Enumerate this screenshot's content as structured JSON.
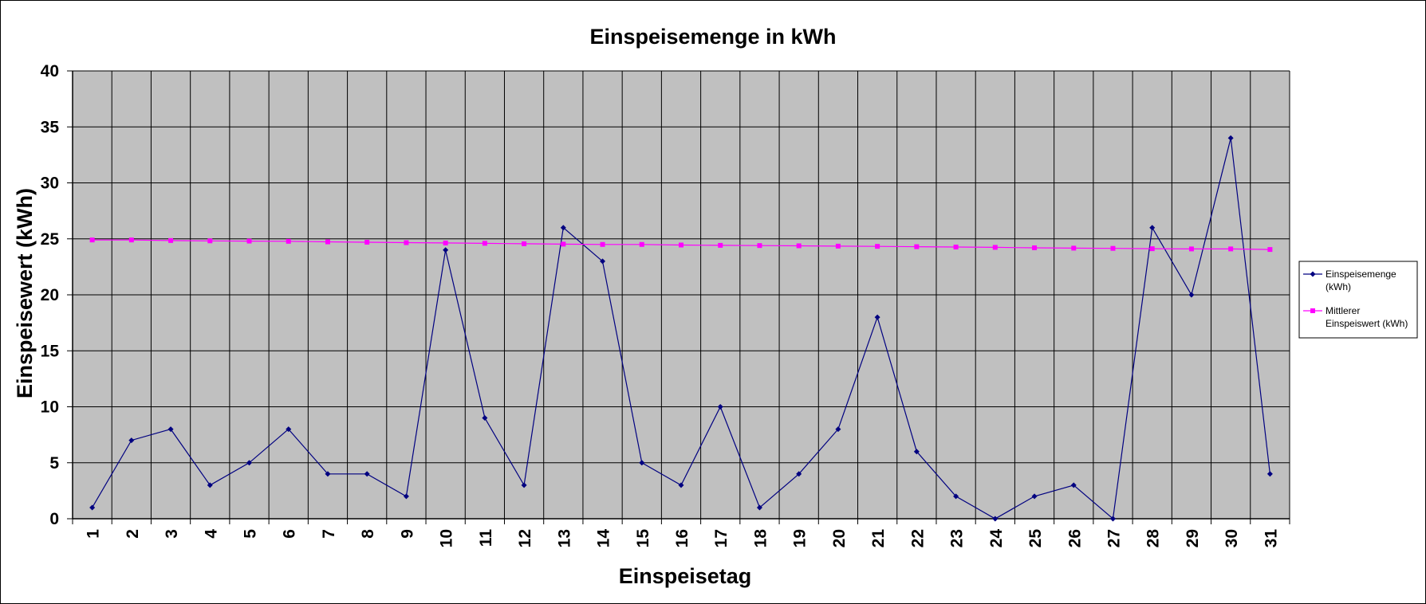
{
  "chart_data": {
    "type": "line",
    "title": "Einspeisemenge in kWh",
    "xlabel": "Einspeisetag",
    "ylabel": "Einspeisewert  (kWh)",
    "categories": [
      "1",
      "2",
      "3",
      "4",
      "5",
      "6",
      "7",
      "8",
      "9",
      "10",
      "11",
      "12",
      "13",
      "14",
      "15",
      "16",
      "17",
      "18",
      "19",
      "20",
      "21",
      "22",
      "23",
      "24",
      "25",
      "26",
      "27",
      "28",
      "29",
      "30",
      "31"
    ],
    "ylim": [
      0,
      40
    ],
    "yticks": [
      "0",
      "5",
      "10",
      "15",
      "20",
      "25",
      "30",
      "35",
      "40"
    ],
    "grid": true,
    "legend_position": "right",
    "series": [
      {
        "name": "Einspeisemenge (kWh)",
        "legend_lines": [
          "Einspeisemenge",
          "(kWh)"
        ],
        "color": "#000080",
        "marker": "diamond",
        "values": [
          1,
          7,
          8,
          3,
          5,
          8,
          4,
          4,
          2,
          24,
          9,
          3,
          26,
          23,
          5,
          3,
          10,
          1,
          4,
          8,
          18,
          6,
          2,
          0,
          2,
          3,
          0,
          26,
          20,
          34,
          4
        ]
      },
      {
        "name": "Mittlerer Einspeiswert (kWh)",
        "legend_lines": [
          "Mittlerer",
          "Einspeiswert (kWh)"
        ],
        "color": "#ff00ff",
        "marker": "square",
        "values": [
          24.9,
          24.9,
          24.85,
          24.82,
          24.8,
          24.78,
          24.73,
          24.7,
          24.66,
          24.63,
          24.6,
          24.56,
          24.53,
          24.5,
          24.5,
          24.45,
          24.42,
          24.4,
          24.38,
          24.35,
          24.33,
          24.3,
          24.27,
          24.24,
          24.2,
          24.17,
          24.15,
          24.12,
          24.1,
          24.1,
          24.05
        ]
      }
    ]
  },
  "colors": {
    "plot_background": "#c0c0c0",
    "grid": "#000000"
  }
}
